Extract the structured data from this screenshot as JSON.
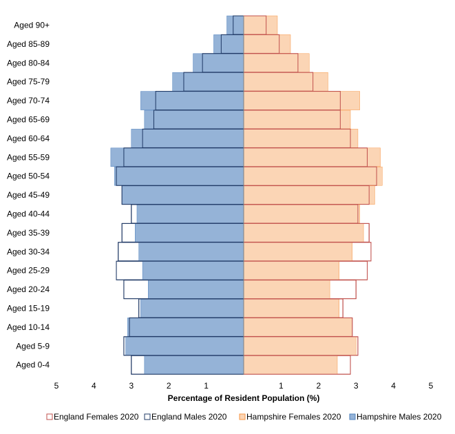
{
  "chart_data": {
    "type": "bar",
    "subtype": "population-pyramid",
    "xlabel": "Percentage of Resident Population (%)",
    "xlim": [
      -5,
      5
    ],
    "xticks": [
      -5,
      -4,
      -3,
      -2,
      -1,
      1,
      2,
      3,
      4,
      5
    ],
    "xtick_labels": [
      "5",
      "4",
      "3",
      "2",
      "1",
      "1",
      "2",
      "3",
      "4",
      "5"
    ],
    "categories": [
      "Aged 90+",
      "Aged 85-89",
      "Aged 80-84",
      "Aged 75-79",
      "Aged 70-74",
      "Aged 65-69",
      "Aged 60-64",
      "Aged 55-59",
      "Aged 50-54",
      "Aged 45-49",
      "Aged 40-44",
      "Aged 35-39",
      "Aged 30-34",
      "Aged 25-29",
      "Aged 20-24",
      "Aged 15-19",
      "Aged 10-14",
      "Aged 5-9",
      "Aged 0-4"
    ],
    "series": [
      {
        "name": "England Females 2020",
        "side": "right",
        "style": "outline",
        "color": "#c0504d",
        "values": [
          0.6,
          0.95,
          1.45,
          1.85,
          2.58,
          2.58,
          2.85,
          3.3,
          3.55,
          3.35,
          3.05,
          3.35,
          3.4,
          3.3,
          3.0,
          2.65,
          2.9,
          3.05,
          2.85
        ]
      },
      {
        "name": "England Males 2020",
        "side": "left",
        "style": "outline",
        "color": "#1f3864",
        "values": [
          0.28,
          0.6,
          1.1,
          1.6,
          2.35,
          2.4,
          2.7,
          3.2,
          3.4,
          3.25,
          3.0,
          3.25,
          3.35,
          3.4,
          3.2,
          2.8,
          3.05,
          3.2,
          3.0
        ]
      },
      {
        "name": "Hampshire Females 2020",
        "side": "right",
        "style": "fill",
        "color": "#fbd5b5",
        "edge": "#f79646",
        "values": [
          0.9,
          1.25,
          1.75,
          2.25,
          3.1,
          2.85,
          3.05,
          3.65,
          3.7,
          3.5,
          3.1,
          3.2,
          2.9,
          2.55,
          2.3,
          2.55,
          2.9,
          3.0,
          2.5
        ]
      },
      {
        "name": "Hampshire Males 2020",
        "side": "left",
        "style": "fill",
        "color": "#95b3d7",
        "edge": "#4f81bd",
        "values": [
          0.45,
          0.8,
          1.35,
          1.9,
          2.75,
          2.65,
          3.0,
          3.55,
          3.45,
          3.25,
          2.85,
          2.9,
          2.8,
          2.7,
          2.55,
          2.75,
          3.1,
          3.15,
          2.65
        ]
      }
    ],
    "legend": {
      "position": "bottom",
      "order": [
        "England Females 2020",
        "England Males 2020",
        "Hampshire Females 2020",
        "Hampshire Males 2020"
      ]
    },
    "grid": false
  }
}
